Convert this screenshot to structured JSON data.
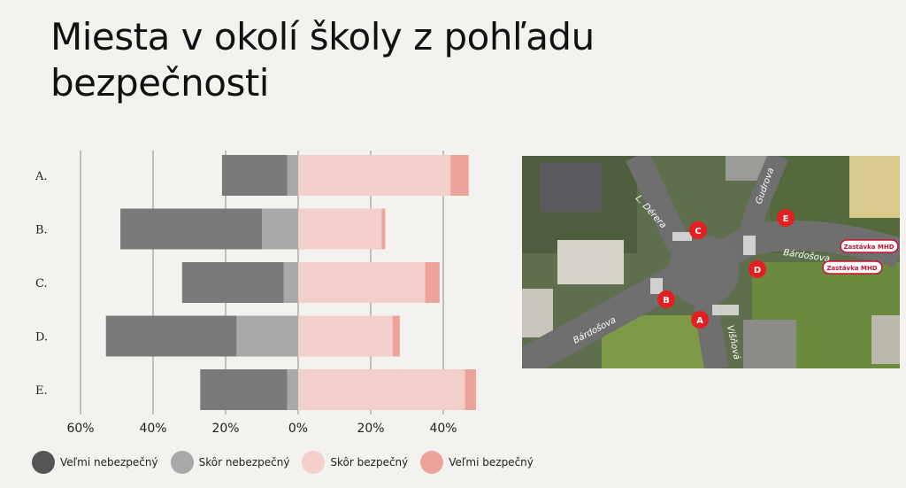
{
  "title": "Miesta v okolí školy z pohľadu bezpečnosti",
  "colors": {
    "very_unsafe": "#7a7a7a",
    "rather_unsafe": "#a8a8a8",
    "rather_safe": "#f3cfcb",
    "very_safe": "#eda39c",
    "gridline": "#8a8a8a",
    "background": "#f4f2ee"
  },
  "legend": [
    {
      "label": "Veľmi nebezpečný",
      "color": "#555555"
    },
    {
      "label": "Skôr nebezpečný",
      "color": "#a8a8a8"
    },
    {
      "label": "Skôr bezpečný",
      "color": "#f3cfcb"
    },
    {
      "label": "Veľmi bezpečný",
      "color": "#eda39c"
    }
  ],
  "chart_data": {
    "type": "bar",
    "orientation": "horizontal-diverging-stacked",
    "categories": [
      "A.",
      "B.",
      "C.",
      "D.",
      "E."
    ],
    "x_tick_labels": [
      "60%",
      "40%",
      "20%",
      "0%",
      "20%",
      "40%"
    ],
    "xlim": [
      -60,
      48
    ],
    "grid": true,
    "legend_position": "bottom",
    "series": [
      {
        "name": "Veľmi nebezpečný",
        "values": [
          18,
          39,
          28,
          36,
          24
        ]
      },
      {
        "name": "Skôr nebezpečný",
        "values": [
          3,
          10,
          4,
          17,
          3
        ]
      },
      {
        "name": "Skôr bezpečný",
        "values": [
          42,
          23,
          35,
          26,
          46
        ]
      },
      {
        "name": "Veľmi bezpečný",
        "values": [
          5,
          1,
          4,
          2,
          3
        ]
      }
    ]
  },
  "map": {
    "markers": [
      {
        "label": "A"
      },
      {
        "label": "B"
      },
      {
        "label": "C"
      },
      {
        "label": "D"
      },
      {
        "label": "E"
      }
    ],
    "streets": [
      "L. Dérera",
      "Gudrova",
      "Bárdošova",
      "Bárdošova",
      "Višňová"
    ],
    "stops": [
      "Zastávka MHD",
      "Zastávka MHD"
    ]
  }
}
